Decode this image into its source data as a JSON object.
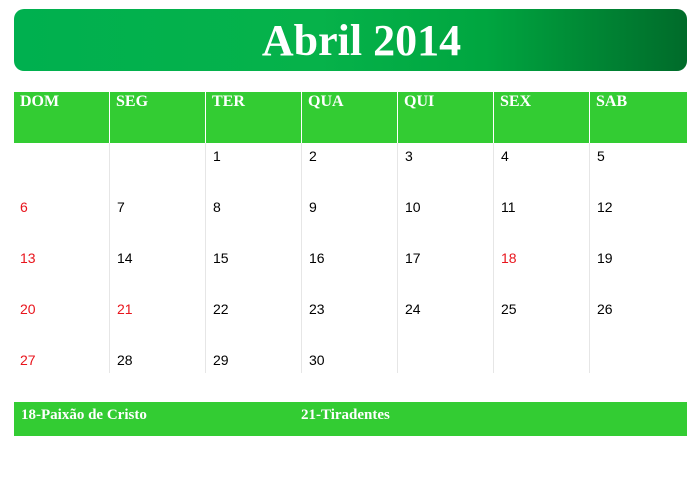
{
  "calendar": {
    "title": "Abril 2014",
    "weekdays": [
      "DOM",
      "SEG",
      "TER",
      "QUA",
      "QUI",
      "SEX",
      "SAB"
    ],
    "weeks": [
      [
        "",
        "",
        "1",
        "2",
        "3",
        "4",
        "5"
      ],
      [
        "6",
        "7",
        "8",
        "9",
        "10",
        "11",
        "12"
      ],
      [
        "13",
        "14",
        "15",
        "16",
        "17",
        "18",
        "19"
      ],
      [
        "20",
        "21",
        "22",
        "23",
        "24",
        "25",
        "26"
      ],
      [
        "27",
        "28",
        "29",
        "30",
        "",
        "",
        ""
      ]
    ],
    "highlighted_days": [
      "6",
      "13",
      "18",
      "20",
      "21",
      "27"
    ],
    "notes": [
      "18-Paixão de Cristo",
      "21-Tiradentes"
    ],
    "colors": {
      "banner_gradient_start": "#00b04f",
      "banner_gradient_end": "#006b2a",
      "header_green": "#33cc33",
      "holiday_red": "#e8141c",
      "day_text": "#000000",
      "header_text": "#ffffff"
    }
  }
}
